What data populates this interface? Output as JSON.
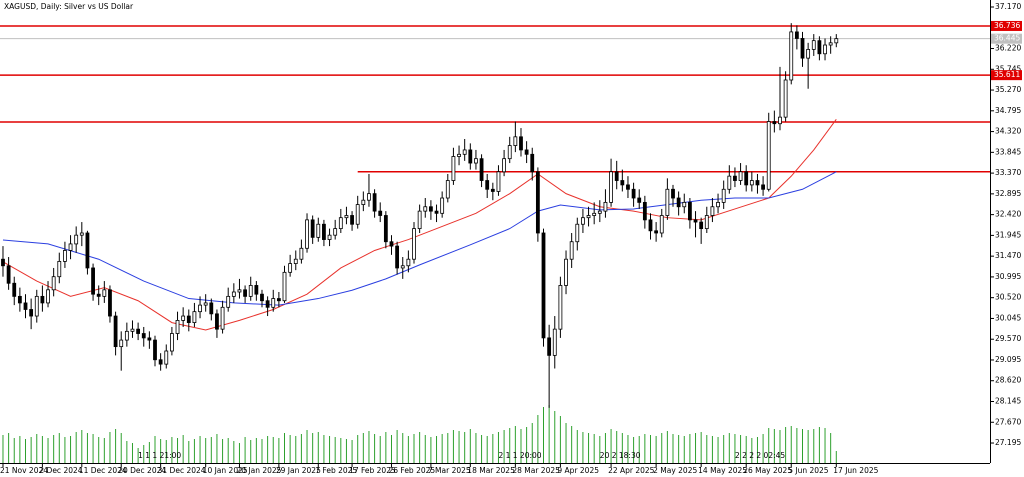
{
  "chart_data": {
    "type": "candlestick",
    "title": "XAGUSD, Daily: Silver vs US Dollar",
    "ylim": [
      26.738,
      37.33
    ],
    "xlim": [
      -0.53,
      175.3
    ],
    "yticks": [
      {
        "value": 37.17,
        "label": "37.170"
      },
      36.695,
      {
        "value": 36.22,
        "label": "36.220"
      },
      35.745,
      {
        "value": 35.27,
        "label": "35.270"
      },
      34.795,
      {
        "value": 34.32,
        "label": "34.320"
      },
      33.845,
      {
        "value": 33.37,
        "label": "33.370"
      },
      32.895,
      {
        "value": 32.42,
        "label": "32.420"
      },
      31.945,
      {
        "value": 31.47,
        "label": "31.470"
      },
      30.995,
      {
        "value": 30.52,
        "label": "30.520"
      },
      30.045,
      {
        "value": 29.57,
        "label": "29.570"
      },
      29.095,
      {
        "value": 28.62,
        "label": "28.620"
      },
      28.145,
      {
        "value": 27.67,
        "label": "27.670"
      },
      27.195
    ],
    "xticks": [
      {
        "value": 0,
        "label": "21 Nov 2024"
      },
      {
        "value": 7,
        "label": "2 Dec 2024"
      },
      {
        "value": 14,
        "label": "11 Dec 2024"
      },
      {
        "value": 21,
        "label": "20 Dec 2024"
      },
      {
        "value": 28,
        "label": "31 Dec 2024"
      },
      {
        "value": 36,
        "label": "10 Jan 2025"
      },
      {
        "value": 42,
        "label": "20 Jan 2025"
      },
      {
        "value": 49,
        "label": "29 Jan 2025"
      },
      {
        "value": 56,
        "label": "7 Feb 2025"
      },
      {
        "value": 62,
        "label": "17 Feb 2025"
      },
      {
        "value": 69,
        "label": "26 Feb 2025"
      },
      {
        "value": 76,
        "label": "7 Mar 2025"
      },
      {
        "value": 83,
        "label": "18 Mar 2025"
      },
      {
        "value": 91,
        "label": "28 Mar 2025"
      },
      {
        "value": 99,
        "label": "9 Apr 2025"
      },
      {
        "value": 108,
        "label": "22 Apr 2025"
      },
      {
        "value": 116,
        "label": "2 May 2025"
      },
      {
        "value": 124,
        "label": "14 May 2025"
      },
      {
        "value": 132,
        "label": "26 May 2025"
      },
      {
        "value": 140,
        "label": "5 Jun 2025"
      },
      {
        "value": 148,
        "label": "17 Jun 2025"
      }
    ],
    "ohlc": [
      [
        31.4,
        31.7,
        31.0,
        31.25
      ],
      [
        31.25,
        31.45,
        30.7,
        30.85
      ],
      [
        30.85,
        31.0,
        30.35,
        30.55
      ],
      [
        30.55,
        30.75,
        30.2,
        30.4
      ],
      [
        30.4,
        30.6,
        30.05,
        30.25
      ],
      [
        30.25,
        30.5,
        29.8,
        30.1
      ],
      [
        30.1,
        30.7,
        29.95,
        30.55
      ],
      [
        30.55,
        30.8,
        30.2,
        30.4
      ],
      [
        30.4,
        30.9,
        30.3,
        30.7
      ],
      [
        30.7,
        31.2,
        30.55,
        31.0
      ],
      [
        31.0,
        31.55,
        30.85,
        31.35
      ],
      [
        31.35,
        31.8,
        31.2,
        31.6
      ],
      [
        31.6,
        31.95,
        31.4,
        31.75
      ],
      [
        31.75,
        32.15,
        31.55,
        31.95
      ],
      [
        31.95,
        32.25,
        31.7,
        32.0
      ],
      [
        32.0,
        32.05,
        31.05,
        31.2
      ],
      [
        31.2,
        31.3,
        30.45,
        30.6
      ],
      [
        30.6,
        30.8,
        30.35,
        30.55
      ],
      [
        30.55,
        30.9,
        30.4,
        30.7
      ],
      [
        30.7,
        30.8,
        29.95,
        30.1
      ],
      [
        30.1,
        30.2,
        29.2,
        29.4
      ],
      [
        29.4,
        29.75,
        28.85,
        29.55
      ],
      [
        29.55,
        29.95,
        29.4,
        29.75
      ],
      [
        29.75,
        30.0,
        29.6,
        29.8
      ],
      [
        29.8,
        29.95,
        29.55,
        29.7
      ],
      [
        29.7,
        29.85,
        29.4,
        29.6
      ],
      [
        29.6,
        29.75,
        29.35,
        29.55
      ],
      [
        29.55,
        29.65,
        28.95,
        29.1
      ],
      [
        29.1,
        29.25,
        28.85,
        29.0
      ],
      [
        29.0,
        29.45,
        28.9,
        29.3
      ],
      [
        29.3,
        29.85,
        29.2,
        29.7
      ],
      [
        29.7,
        30.2,
        29.55,
        30.0
      ],
      [
        30.0,
        30.3,
        29.85,
        30.1
      ],
      [
        30.1,
        30.25,
        29.75,
        29.95
      ],
      [
        29.95,
        30.4,
        29.85,
        30.2
      ],
      [
        30.2,
        30.55,
        30.05,
        30.35
      ],
      [
        30.35,
        30.6,
        30.2,
        30.4
      ],
      [
        30.4,
        30.5,
        30.0,
        30.15
      ],
      [
        30.15,
        30.25,
        29.6,
        29.8
      ],
      [
        29.8,
        30.45,
        29.7,
        30.3
      ],
      [
        30.3,
        30.75,
        30.2,
        30.55
      ],
      [
        30.55,
        30.85,
        30.4,
        30.65
      ],
      [
        30.65,
        30.95,
        30.5,
        30.7
      ],
      [
        30.7,
        30.8,
        30.4,
        30.55
      ],
      [
        30.55,
        31.0,
        30.45,
        30.8
      ],
      [
        30.8,
        30.9,
        30.45,
        30.6
      ],
      [
        30.6,
        30.7,
        30.3,
        30.45
      ],
      [
        30.45,
        30.55,
        30.1,
        30.3
      ],
      [
        30.3,
        30.7,
        30.2,
        30.5
      ],
      [
        30.5,
        30.65,
        30.3,
        30.45
      ],
      [
        30.45,
        31.25,
        30.4,
        31.1
      ],
      [
        31.1,
        31.5,
        31.0,
        31.3
      ],
      [
        31.3,
        31.6,
        31.15,
        31.4
      ],
      [
        31.4,
        31.85,
        31.3,
        31.65
      ],
      [
        31.65,
        32.45,
        31.55,
        32.3
      ],
      [
        32.3,
        32.4,
        31.75,
        31.9
      ],
      [
        31.9,
        32.35,
        31.8,
        32.2
      ],
      [
        32.2,
        32.3,
        31.7,
        31.85
      ],
      [
        31.85,
        32.1,
        31.7,
        31.95
      ],
      [
        31.95,
        32.3,
        31.85,
        32.1
      ],
      [
        32.1,
        32.55,
        32.0,
        32.35
      ],
      [
        32.35,
        32.6,
        32.2,
        32.4
      ],
      [
        32.4,
        32.5,
        32.05,
        32.2
      ],
      [
        32.2,
        32.85,
        32.1,
        32.65
      ],
      [
        32.65,
        32.95,
        32.5,
        32.75
      ],
      [
        32.75,
        33.35,
        32.6,
        32.9
      ],
      [
        32.9,
        33.0,
        32.35,
        32.5
      ],
      [
        32.5,
        32.7,
        32.25,
        32.4
      ],
      [
        32.4,
        32.5,
        31.65,
        31.8
      ],
      [
        31.8,
        31.95,
        31.5,
        31.7
      ],
      [
        31.7,
        31.8,
        31.05,
        31.2
      ],
      [
        31.2,
        31.45,
        30.95,
        31.25
      ],
      [
        31.25,
        31.6,
        31.1,
        31.4
      ],
      [
        31.4,
        32.25,
        31.3,
        32.1
      ],
      [
        32.1,
        32.65,
        32.0,
        32.5
      ],
      [
        32.5,
        32.8,
        32.35,
        32.6
      ],
      [
        32.6,
        32.75,
        32.3,
        32.5
      ],
      [
        32.5,
        32.65,
        32.25,
        32.45
      ],
      [
        32.45,
        32.95,
        32.35,
        32.8
      ],
      [
        32.8,
        33.35,
        32.7,
        33.2
      ],
      [
        33.2,
        33.95,
        33.1,
        33.75
      ],
      [
        33.75,
        34.0,
        33.55,
        33.8
      ],
      [
        33.8,
        34.15,
        33.65,
        33.9
      ],
      [
        33.9,
        34.05,
        33.45,
        33.6
      ],
      [
        33.6,
        33.9,
        33.45,
        33.7
      ],
      [
        33.7,
        33.8,
        33.05,
        33.2
      ],
      [
        33.2,
        33.35,
        32.8,
        33.0
      ],
      [
        33.0,
        33.15,
        32.75,
        32.95
      ],
      [
        32.95,
        33.55,
        32.85,
        33.4
      ],
      [
        33.4,
        33.9,
        33.3,
        33.7
      ],
      [
        33.7,
        34.2,
        33.6,
        34.0
      ],
      [
        34.0,
        34.55,
        33.85,
        34.2
      ],
      [
        34.2,
        34.4,
        33.75,
        33.9
      ],
      [
        33.9,
        34.1,
        33.6,
        33.8
      ],
      [
        33.8,
        33.95,
        33.2,
        33.4
      ],
      [
        33.4,
        33.5,
        31.8,
        32.0
      ],
      [
        32.0,
        32.1,
        29.4,
        29.6
      ],
      [
        29.6,
        29.9,
        28.0,
        29.2
      ],
      [
        29.2,
        30.1,
        28.9,
        29.8
      ],
      [
        29.8,
        31.0,
        29.6,
        30.8
      ],
      [
        30.8,
        31.6,
        30.6,
        31.4
      ],
      [
        31.4,
        32.0,
        31.2,
        31.8
      ],
      [
        31.8,
        32.35,
        31.6,
        32.2
      ],
      [
        32.2,
        32.55,
        32.0,
        32.35
      ],
      [
        32.35,
        32.6,
        32.15,
        32.4
      ],
      [
        32.4,
        32.7,
        32.2,
        32.45
      ],
      [
        32.45,
        32.75,
        32.25,
        32.5
      ],
      [
        32.5,
        33.0,
        32.35,
        32.7
      ],
      [
        32.7,
        33.7,
        32.6,
        33.4
      ],
      [
        33.4,
        33.65,
        33.0,
        33.2
      ],
      [
        33.2,
        33.45,
        32.95,
        33.1
      ],
      [
        33.1,
        33.3,
        32.8,
        33.0
      ],
      [
        33.0,
        33.15,
        32.6,
        32.8
      ],
      [
        32.8,
        33.0,
        32.55,
        32.7
      ],
      [
        32.7,
        32.85,
        32.1,
        32.3
      ],
      [
        32.3,
        32.45,
        31.85,
        32.05
      ],
      [
        32.05,
        32.25,
        31.8,
        32.0
      ],
      [
        32.0,
        32.55,
        31.9,
        32.4
      ],
      [
        32.4,
        33.25,
        32.3,
        33.0
      ],
      [
        33.0,
        33.1,
        32.6,
        32.8
      ],
      [
        32.8,
        32.95,
        32.4,
        32.6
      ],
      [
        32.6,
        32.9,
        32.45,
        32.7
      ],
      [
        32.7,
        32.8,
        32.1,
        32.3
      ],
      [
        32.3,
        32.5,
        31.9,
        32.25
      ],
      [
        32.25,
        32.35,
        31.75,
        32.1
      ],
      [
        32.1,
        32.6,
        32.0,
        32.4
      ],
      [
        32.4,
        32.8,
        32.25,
        32.6
      ],
      [
        32.6,
        32.9,
        32.45,
        32.7
      ],
      [
        32.7,
        33.2,
        32.55,
        33.0
      ],
      [
        33.0,
        33.55,
        32.9,
        33.3
      ],
      [
        33.3,
        33.5,
        33.05,
        33.2
      ],
      [
        33.2,
        33.6,
        33.1,
        33.4
      ],
      [
        33.4,
        33.55,
        32.95,
        33.1
      ],
      [
        33.1,
        33.4,
        32.95,
        33.2
      ],
      [
        33.2,
        33.35,
        32.9,
        33.1
      ],
      [
        33.1,
        33.3,
        32.85,
        33.0
      ],
      [
        33.0,
        34.75,
        32.95,
        34.55
      ],
      [
        34.55,
        34.8,
        34.3,
        34.5
      ],
      [
        34.5,
        35.8,
        34.35,
        34.65
      ],
      [
        34.65,
        35.7,
        34.55,
        35.5
      ],
      [
        35.5,
        36.8,
        35.4,
        36.6
      ],
      [
        36.6,
        36.75,
        36.2,
        36.45
      ],
      [
        36.45,
        36.6,
        35.8,
        36.0
      ],
      [
        36.0,
        36.35,
        35.3,
        36.2
      ],
      [
        36.2,
        36.55,
        36.05,
        36.4
      ],
      [
        36.4,
        36.5,
        35.95,
        36.1
      ],
      [
        36.1,
        36.45,
        35.95,
        36.3
      ],
      [
        36.3,
        36.5,
        36.1,
        36.35
      ],
      [
        36.35,
        36.55,
        36.25,
        36.445
      ]
    ],
    "volume": [
      28,
      30,
      25,
      27,
      24,
      26,
      29,
      27,
      25,
      28,
      30,
      26,
      27,
      31,
      33,
      30,
      29,
      26,
      25,
      31,
      34,
      30,
      22,
      20,
      15,
      18,
      21,
      27,
      24,
      23,
      26,
      25,
      28,
      22,
      24,
      27,
      25,
      26,
      29,
      24,
      25,
      22,
      20,
      26,
      23,
      25,
      24,
      27,
      26,
      25,
      30,
      28,
      27,
      29,
      33,
      30,
      31,
      28,
      27,
      26,
      25,
      24,
      23,
      28,
      30,
      32,
      29,
      27,
      31,
      28,
      33,
      30,
      27,
      29,
      31,
      28,
      26,
      27,
      29,
      30,
      33,
      32,
      31,
      34,
      30,
      28,
      27,
      29,
      31,
      33,
      35,
      37,
      34,
      36,
      40,
      48,
      56,
      58,
      52,
      47,
      40,
      37,
      33,
      31,
      30,
      29,
      27,
      30,
      34,
      32,
      30,
      28,
      26,
      27,
      29,
      28,
      27,
      30,
      32,
      29,
      28,
      27,
      29,
      30,
      31,
      28,
      27,
      26,
      28,
      30,
      29,
      28,
      27,
      25,
      26,
      29,
      35,
      34,
      33,
      36,
      37,
      35,
      34,
      33,
      34,
      36,
      35,
      30,
      12
    ],
    "volume_ylim": [
      0,
      100
    ],
    "volume_color": "#2ea02e",
    "series": [
      {
        "name": "MA fast",
        "color": "#e8322c",
        "x": [
          0,
          6,
          12,
          18,
          24,
          30,
          36,
          42,
          48,
          54,
          60,
          66,
          72,
          78,
          84,
          90,
          95,
          100,
          106,
          112,
          118,
          124,
          130,
          136,
          140,
          144,
          148
        ],
        "values": [
          31.34,
          30.9,
          30.55,
          30.75,
          30.45,
          29.95,
          29.78,
          30.0,
          30.25,
          30.6,
          31.2,
          31.6,
          31.85,
          32.15,
          32.45,
          32.9,
          33.35,
          32.9,
          32.6,
          32.5,
          32.35,
          32.3,
          32.55,
          32.8,
          33.3,
          33.9,
          34.6
        ]
      },
      {
        "name": "MA slow",
        "color": "#2b3fe0",
        "x": [
          0,
          8,
          17,
          25,
          33,
          41,
          49,
          56,
          62,
          68,
          74,
          83,
          90,
          95,
          99,
          106,
          112,
          118,
          124,
          130,
          136,
          142,
          148
        ],
        "values": [
          31.84,
          31.75,
          31.4,
          30.9,
          30.5,
          30.4,
          30.35,
          30.5,
          30.69,
          30.95,
          31.27,
          31.73,
          32.1,
          32.5,
          32.64,
          32.53,
          32.55,
          32.65,
          32.75,
          32.8,
          32.8,
          33.0,
          33.4
        ]
      }
    ],
    "levels": [
      {
        "price": 36.736,
        "from": -0.53,
        "labeled": true
      },
      {
        "price": 35.611,
        "from": -0.53,
        "labeled": true
      },
      {
        "price": 34.54,
        "from": -0.53,
        "labeled": false
      },
      {
        "price": 33.4,
        "from": 63,
        "labeled": false
      }
    ],
    "level_color": "#e00000",
    "bid": 36.445,
    "annotations": [
      {
        "text": "1 1 1 21:00",
        "x": 24
      },
      {
        "text": "2 1 1 20:00",
        "x": 88
      },
      {
        "text": "20 2 18:30",
        "x": 106
      },
      {
        "text": "2 2 2 2 02:45",
        "x": 130
      }
    ]
  }
}
